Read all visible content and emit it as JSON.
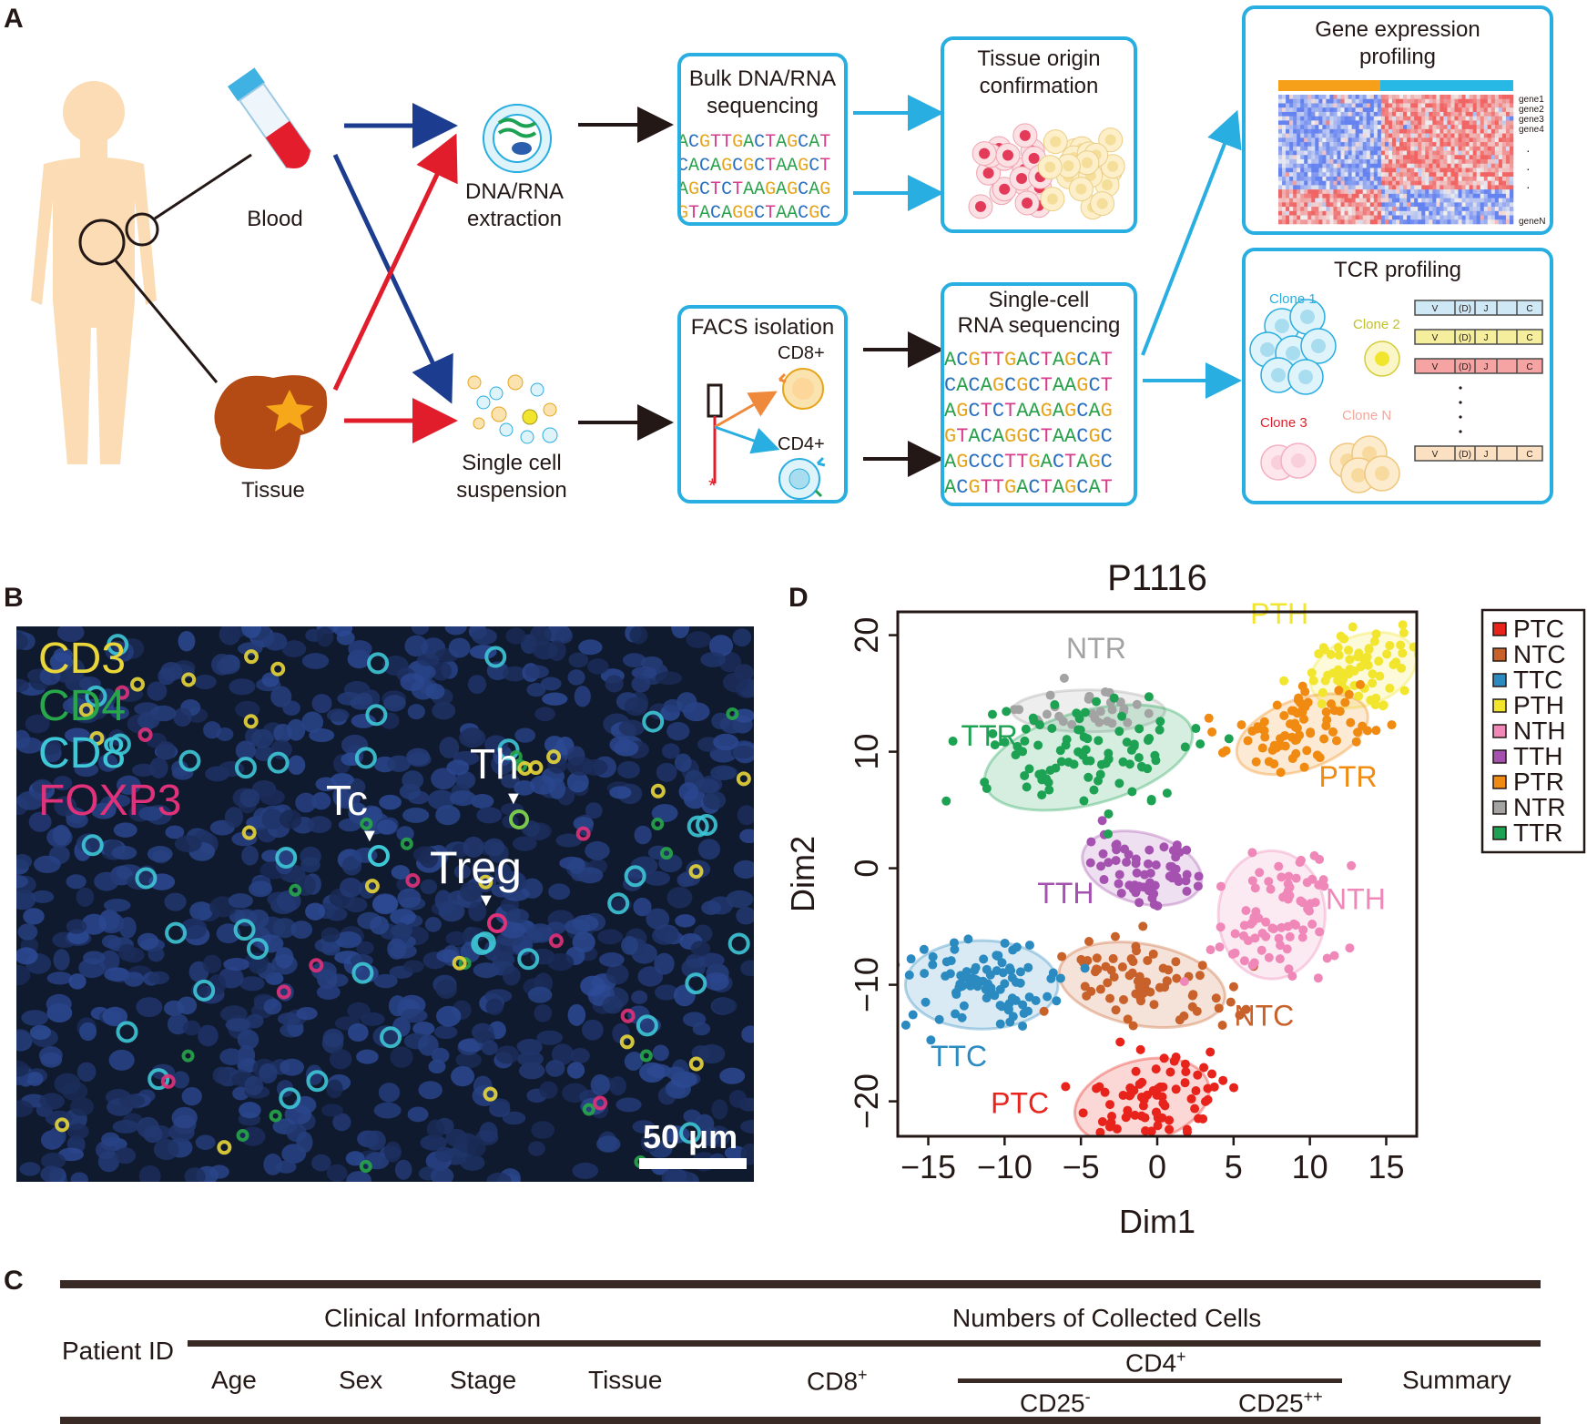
{
  "panels": {
    "a": "A",
    "b": "B",
    "c": "C",
    "d": "D"
  },
  "panel_a": {
    "blood": "Blood",
    "tissue": "Tissue",
    "extraction": [
      "DNA/RNA",
      "extraction"
    ],
    "suspension": [
      "Single cell",
      "suspension"
    ],
    "bulk_title": [
      "Bulk DNA/RNA",
      "sequencing"
    ],
    "facs_title": "FACS isolation",
    "cd8": "CD8+",
    "cd4": "CD4+",
    "origin_title": [
      "Tissue origin",
      "confirmation"
    ],
    "sc_title": [
      "Single-cell",
      "RNA sequencing"
    ],
    "gene_title": [
      "Gene expression",
      "profiling"
    ],
    "gene_labels": [
      "gene1",
      "gene2",
      "gene3",
      "gene4",
      "geneN"
    ],
    "tcr_title": "TCR profiling",
    "clones": [
      "Clone 1",
      "Clone 2",
      "Clone 3",
      "Clone N"
    ],
    "segments": [
      "V",
      "(D)",
      "J",
      "C"
    ],
    "bulk_seq": [
      "ACGTTGACTAGCAT",
      "CACAGCGCTAAGCT",
      "AGCTCTAAGAGCAG",
      "GTACAGGCTAACGC",
      "AGCCCTTGACTAGC"
    ],
    "sc_seq": [
      "ACGTTGACTAGCAT",
      "CACAGCGCTAAGCT",
      "AGCTCTAAGAGCAG",
      "GTACAGGCTAACGC",
      "AGCCCTTGACTAGC",
      "ACGTTGACTAGCAT",
      "CACAGCGCTAAGCT"
    ]
  },
  "panel_b": {
    "stains": [
      {
        "name": "CD3",
        "color": "#e8d63a"
      },
      {
        "name": "CD4",
        "color": "#27a64a"
      },
      {
        "name": "CD8",
        "color": "#3ec7d6"
      },
      {
        "name": "FOXP3",
        "color": "#e0327a"
      }
    ],
    "tc": "Tc",
    "th": "Th",
    "treg": "Treg",
    "scale_bar": "50 μm"
  },
  "panel_c": {
    "patient_id": "Patient ID",
    "clinical": "Clinical Information",
    "numbers": "Numbers of Collected Cells",
    "age": "Age",
    "sex": "Sex",
    "stage": "Stage",
    "tissue": "Tissue",
    "cd8": "CD8",
    "cd8_sup": "+",
    "cd4": "CD4",
    "cd4_sup": "+",
    "cd25n": "CD25",
    "cd25n_sup": "-",
    "cd25p": "CD25",
    "cd25p_sup": "++",
    "summary": "Summary"
  },
  "chart_data": {
    "type": "scatter",
    "title": "P1116",
    "xlabel": "Dim1",
    "ylabel": "Dim2",
    "xlim": [
      -17,
      17
    ],
    "ylim": [
      -23,
      22
    ],
    "xticks": [
      -15,
      -10,
      -5,
      0,
      5,
      10,
      15
    ],
    "yticks": [
      -20,
      -10,
      0,
      10,
      20
    ],
    "grid": false,
    "legend_position": "right",
    "series": [
      {
        "name": "PTC",
        "color": "#e8231b",
        "label_pos": [
          -9,
          -21
        ],
        "center": [
          -1,
          -20
        ],
        "radii": [
          4.5,
          3.5
        ],
        "angle": 15,
        "n": 80
      },
      {
        "name": "NTC",
        "color": "#c9612a",
        "label_pos": [
          7,
          -13.5
        ],
        "center": [
          -1,
          -10
        ],
        "radii": [
          5.5,
          3.5
        ],
        "angle": -10,
        "n": 75
      },
      {
        "name": "TTC",
        "color": "#2b8ac0",
        "label_pos": [
          -13,
          -17
        ],
        "center": [
          -11.5,
          -10
        ],
        "radii": [
          5,
          3.8
        ],
        "angle": 0,
        "n": 95
      },
      {
        "name": "PTH",
        "color": "#f2e52e",
        "label_pos": [
          8,
          21
        ],
        "center": [
          13.5,
          17
        ],
        "radii": [
          3.6,
          3
        ],
        "angle": 20,
        "n": 70
      },
      {
        "name": "NTH",
        "color": "#ef88b8",
        "label_pos": [
          13,
          -3.5
        ],
        "center": [
          7.5,
          -4
        ],
        "radii": [
          3.5,
          5.5
        ],
        "angle": 0,
        "n": 80
      },
      {
        "name": "TTH",
        "color": "#a551b0",
        "label_pos": [
          -6,
          -3
        ],
        "center": [
          -1,
          0
        ],
        "radii": [
          4,
          3
        ],
        "angle": -15,
        "n": 60
      },
      {
        "name": "PTR",
        "color": "#f08a11",
        "label_pos": [
          12.5,
          7
        ],
        "center": [
          9.5,
          11.5
        ],
        "radii": [
          4.5,
          3
        ],
        "angle": 20,
        "n": 75
      },
      {
        "name": "NTR",
        "color": "#a3a3a3",
        "label_pos": [
          -4,
          18
        ],
        "center": [
          -4.5,
          13.5
        ],
        "radii": [
          5,
          1.8
        ],
        "angle": 0,
        "n": 30
      },
      {
        "name": "TTR",
        "color": "#1da253",
        "label_pos": [
          -11,
          10.5
        ],
        "center": [
          -4.5,
          9.5
        ],
        "radii": [
          7,
          4
        ],
        "angle": 15,
        "n": 95
      }
    ]
  }
}
